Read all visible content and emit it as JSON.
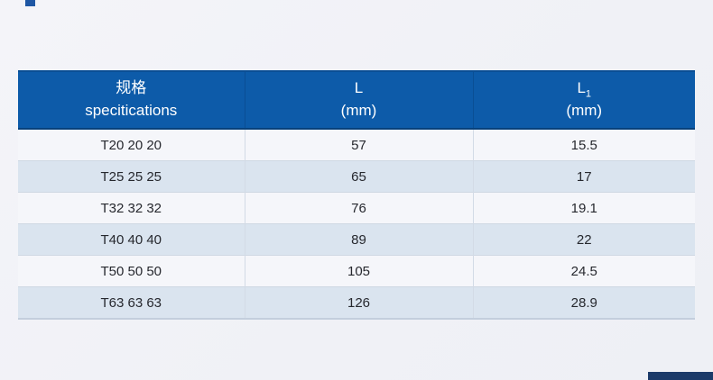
{
  "page": {
    "background_color": "#f1f2f7"
  },
  "decor": {
    "top_left_square_color": "#1e56a4",
    "bottom_right_bar_color": "#1b3a69"
  },
  "table": {
    "colors": {
      "header_background": "#0d5ba9",
      "header_text": "#ffffff",
      "row_light": "#f5f6fa",
      "row_alt_blue": "#dae4ef",
      "grid_line": "#cfd8e3"
    },
    "header": {
      "spec_line1": "规格",
      "spec_line2": "specitications",
      "l_line1": "L",
      "l_line2": "(mm)",
      "l1_base": "L",
      "l1_subscript": "1",
      "l1_line2": "(mm)"
    },
    "rows": [
      {
        "spec": "T20 20 20",
        "l": "57",
        "l1": "15.5"
      },
      {
        "spec": "T25 25 25",
        "l": "65",
        "l1": "17"
      },
      {
        "spec": "T32 32 32",
        "l": "76",
        "l1": "19.1"
      },
      {
        "spec": "T40 40 40",
        "l": "89",
        "l1": "22"
      },
      {
        "spec": "T50 50 50",
        "l": "105",
        "l1": "24.5"
      },
      {
        "spec": "T63 63 63",
        "l": "126",
        "l1": "28.9"
      }
    ]
  }
}
